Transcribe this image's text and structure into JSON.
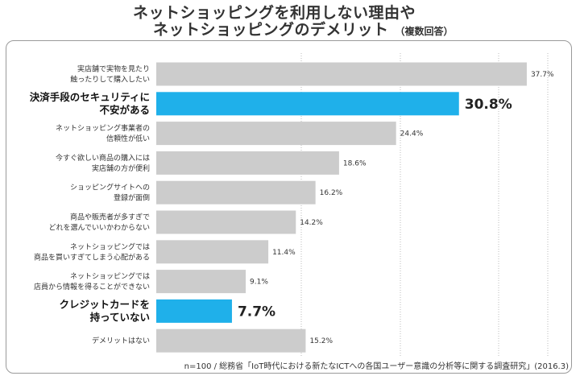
{
  "header": {
    "title_line1": "ネットショッピングを利用しない理由や",
    "title_line2": "ネットショッピングのデメリット",
    "title_note": "（複数回答）"
  },
  "source": "n=100 / 総務省「IoT時代における新たなICTへの各国ユーザー意識の分析等に関する調査研究」(2016.3)",
  "colors": {
    "bar_default": "#cccccc",
    "bar_highlight": "#1fb0ea",
    "frame": "#9a9a9a",
    "grid": "#bbbbbb"
  },
  "chart_data": {
    "type": "bar",
    "orientation": "horizontal",
    "xlim": [
      0,
      40
    ],
    "grid": true,
    "unit": "%",
    "categories": [
      [
        "実店舗で実物を見たり",
        "触ったりして購入したい"
      ],
      [
        "決済手段のセキュリティに",
        "不安がある"
      ],
      [
        "ネットショッピング事業者の",
        "信頼性が低い"
      ],
      [
        "今すぐ欲しい商品の購入には",
        "実店舗の方が便利"
      ],
      [
        "ショッピングサイトへの",
        "登録が面倒"
      ],
      [
        "商品や販売者が多すぎで",
        "どれを選んでいいかわからない"
      ],
      [
        "ネットショッピングでは",
        "商品を買いすぎてしまう心配がある"
      ],
      [
        "ネットショッピングでは",
        "店員から情報を得ることができない"
      ],
      [
        "クレジットカードを",
        "持っていない"
      ],
      [
        "デメリットはない"
      ]
    ],
    "values": [
      37.7,
      30.8,
      24.4,
      18.6,
      16.2,
      14.2,
      11.4,
      9.1,
      7.7,
      15.2
    ],
    "value_labels": [
      "37.7%",
      "30.8%",
      "24.4%",
      "18.6%",
      "16.2%",
      "14.2%",
      "11.4%",
      "9.1%",
      "7.7%",
      "15.2%"
    ],
    "highlighted": [
      false,
      true,
      false,
      false,
      false,
      false,
      false,
      false,
      true,
      false
    ]
  }
}
